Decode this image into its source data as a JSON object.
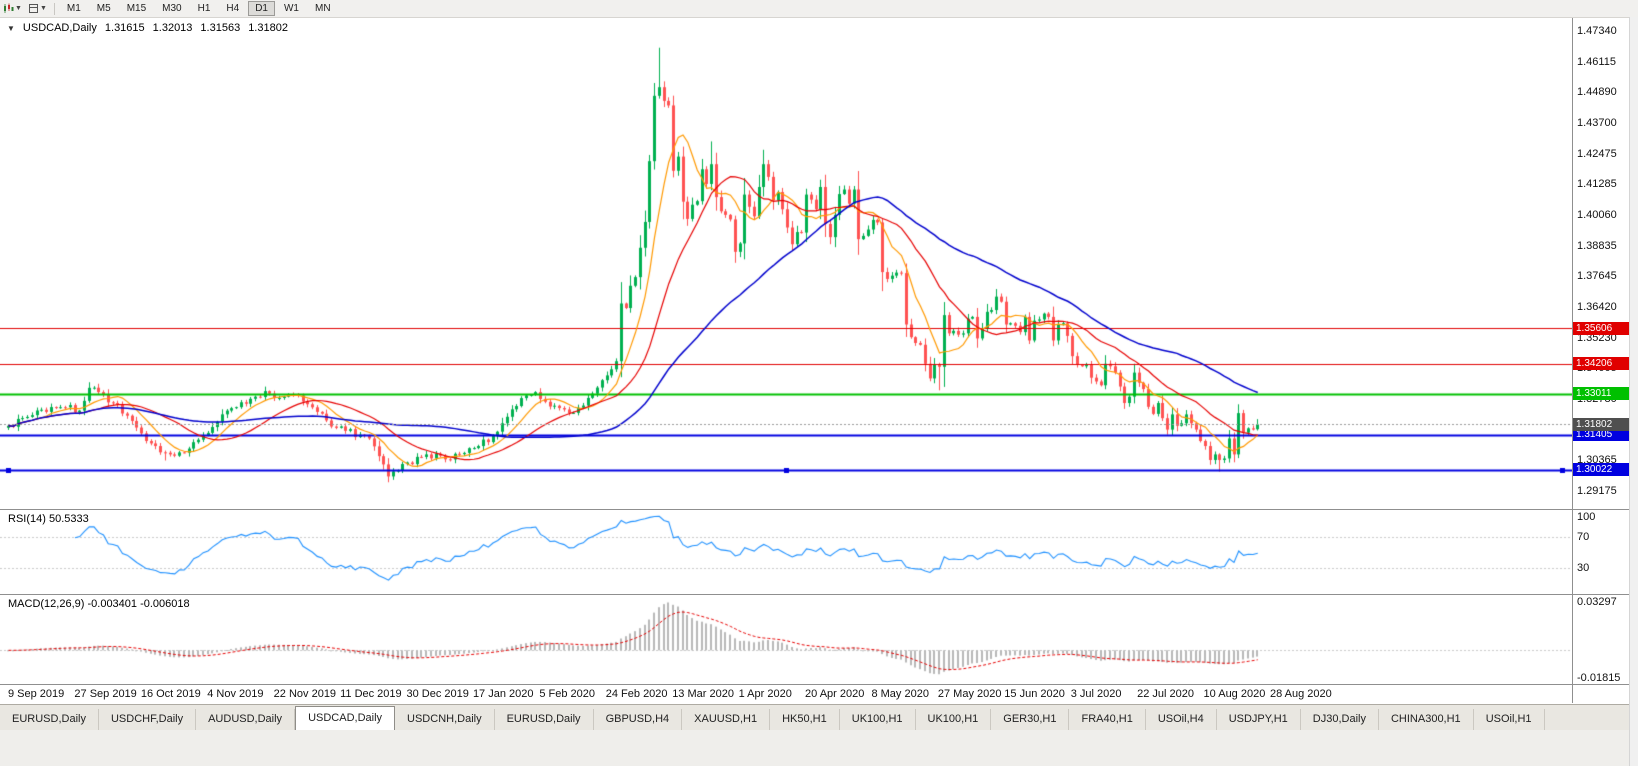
{
  "toolbar": {
    "timeframes": [
      "M1",
      "M5",
      "M15",
      "M30",
      "H1",
      "H4",
      "D1",
      "W1",
      "MN"
    ],
    "active_timeframe": "D1",
    "icons": [
      "chart-menu-icon",
      "chart-type-icon"
    ]
  },
  "chart": {
    "marker": "▼",
    "title": {
      "symbol_period": "USDCAD,Daily",
      "open": "1.31615",
      "high": "1.32013",
      "low": "1.31563",
      "close": "1.31802"
    },
    "price_axis_labels": [
      "1.47340",
      "1.46115",
      "1.44890",
      "1.43700",
      "1.42475",
      "1.41285",
      "1.40060",
      "1.38835",
      "1.37645",
      "1.36420",
      "1.35230",
      "1.34005",
      "1.32780",
      "1.31590",
      "1.30365",
      "1.29175"
    ],
    "date_axis_labels": [
      "9 Sep 2019",
      "27 Sep 2019",
      "16 Oct 2019",
      "4 Nov 2019",
      "22 Nov 2019",
      "11 Dec 2019",
      "30 Dec 2019",
      "17 Jan 2020",
      "5 Feb 2020",
      "24 Feb 2020",
      "13 Mar 2020",
      "1 Apr 2020",
      "20 Apr 2020",
      "8 May 2020",
      "27 May 2020",
      "15 Jun 2020",
      "3 Jul 2020",
      "22 Jul 2020",
      "10 Aug 2020",
      "28 Aug 2020"
    ],
    "levels": [
      {
        "label": "1.35606",
        "value": 1.35606,
        "color": "#e00000",
        "width": 1
      },
      {
        "label": "1.34206",
        "value": 1.34206,
        "color": "#e00000",
        "width": 1
      },
      {
        "label": "1.33011",
        "value": 1.33011,
        "color": "#00c000",
        "width": 2
      },
      {
        "label": "1.31405",
        "value": 1.31405,
        "color": "#0000e0",
        "width": 2
      },
      {
        "label": "1.30022",
        "value": 1.30022,
        "color": "#0000e0",
        "width": 2,
        "handles": true
      }
    ],
    "colors": {
      "candle_up": "#00b050",
      "candle_down": "#ff5252",
      "ma_fast": "#ff9900",
      "ma_mid": "#e60000",
      "ma_slow": "#0000cd",
      "rsi": "#1e90ff",
      "macd_hist": "#b8b8b8",
      "macd_signal": "#e60000",
      "current_tag": "#4f4f4f"
    }
  },
  "indicators": {
    "rsi": {
      "label": "RSI(14)",
      "value": "50.5333",
      "period": 14,
      "axis_labels": [
        "100",
        "70",
        "30"
      ],
      "guide_levels": [
        70,
        30
      ]
    },
    "macd": {
      "label": "MACD(12,26,9)",
      "value": "-0.003401 -0.006018",
      "fast": 12,
      "slow": 26,
      "signal_period": 9,
      "axis_labels": [
        "0.03297",
        "-0.01815"
      ],
      "axis_max": 0.03297,
      "axis_min": -0.01815
    }
  },
  "tabs": {
    "items": [
      "EURUSD,Daily",
      "USDCHF,Daily",
      "AUDUSD,Daily",
      "USDCAD,Daily",
      "USDCNH,Daily",
      "EURUSD,Daily",
      "GBPUSD,H4",
      "XAUUSD,H1",
      "HK50,H1",
      "UK100,H1",
      "UK100,H1",
      "GER30,H1",
      "FRA40,H1",
      "USOil,H4",
      "USDJPY,H1",
      "DJ30,Daily",
      "CHINA300,H1",
      "USOil,H1"
    ],
    "active_index": 3
  },
  "chart_data": {
    "type": "candlestick",
    "symbol": "USDCAD",
    "timeframe": "Daily",
    "candle_count": 264,
    "price_at_top_label": 1.4734,
    "price_at_bottom_label": 1.29175,
    "ma_periods": [
      8,
      20,
      50
    ],
    "close_anchors": [
      [
        0,
        1.3175
      ],
      [
        4,
        1.321
      ],
      [
        8,
        1.323
      ],
      [
        12,
        1.3248
      ],
      [
        15,
        1.3235
      ],
      [
        17,
        1.3325
      ],
      [
        19,
        1.3308
      ],
      [
        22,
        1.3265
      ],
      [
        25,
        1.3215
      ],
      [
        28,
        1.3145
      ],
      [
        31,
        1.3095
      ],
      [
        34,
        1.3062
      ],
      [
        36,
        1.307
      ],
      [
        38,
        1.3085
      ],
      [
        40,
        1.312
      ],
      [
        43,
        1.317
      ],
      [
        46,
        1.3235
      ],
      [
        49,
        1.3268
      ],
      [
        52,
        1.329
      ],
      [
        55,
        1.3302
      ],
      [
        57,
        1.3285
      ],
      [
        59,
        1.3298
      ],
      [
        61,
        1.3295
      ],
      [
        63,
        1.326
      ],
      [
        65,
        1.323
      ],
      [
        68,
        1.3172
      ],
      [
        71,
        1.3155
      ],
      [
        74,
        1.314
      ],
      [
        76,
        1.3125
      ],
      [
        78,
        1.3055
      ],
      [
        80,
        1.2975
      ],
      [
        82,
        1.2998
      ],
      [
        84,
        1.303
      ],
      [
        87,
        1.3052
      ],
      [
        90,
        1.3065
      ],
      [
        93,
        1.3042
      ],
      [
        96,
        1.3068
      ],
      [
        99,
        1.3095
      ],
      [
        102,
        1.3135
      ],
      [
        104,
        1.3185
      ],
      [
        106,
        1.324
      ],
      [
        109,
        1.3295
      ],
      [
        111,
        1.3308
      ],
      [
        113,
        1.327
      ],
      [
        116,
        1.3245
      ],
      [
        119,
        1.3226
      ],
      [
        121,
        1.3255
      ],
      [
        123,
        1.3302
      ],
      [
        125,
        1.3355
      ],
      [
        127,
        1.3398
      ],
      [
        128,
        1.343
      ],
      [
        129,
        1.3658
      ],
      [
        130,
        1.364
      ],
      [
        131,
        1.3728
      ],
      [
        132,
        1.3762
      ],
      [
        133,
        1.3878
      ],
      [
        134,
        1.398
      ],
      [
        135,
        1.422
      ],
      [
        136,
        1.4478
      ],
      [
        137,
        1.4512
      ],
      [
        138,
        1.4458
      ],
      [
        139,
        1.444
      ],
      [
        140,
        1.4182
      ],
      [
        141,
        1.4238
      ],
      [
        142,
        1.406
      ],
      [
        143,
        1.3992
      ],
      [
        144,
        1.4048
      ],
      [
        145,
        1.4062
      ],
      [
        146,
        1.4188
      ],
      [
        147,
        1.413
      ],
      [
        148,
        1.4208
      ],
      [
        149,
        1.4078
      ],
      [
        150,
        1.4022
      ],
      [
        151,
        1.4008
      ],
      [
        152,
        1.399
      ],
      [
        153,
        1.3862
      ],
      [
        154,
        1.3895
      ],
      [
        155,
        1.4088
      ],
      [
        156,
        1.404
      ],
      [
        157,
        1.4002
      ],
      [
        158,
        1.4118
      ],
      [
        159,
        1.4208
      ],
      [
        160,
        1.4158
      ],
      [
        161,
        1.4065
      ],
      [
        162,
        1.4098
      ],
      [
        163,
        1.403
      ],
      [
        164,
        1.3958
      ],
      [
        165,
        1.3892
      ],
      [
        166,
        1.394
      ],
      [
        167,
        1.3938
      ],
      [
        168,
        1.4088
      ],
      [
        169,
        1.4068
      ],
      [
        170,
        1.403
      ],
      [
        171,
        1.4118
      ],
      [
        172,
        1.3972
      ],
      [
        173,
        1.392
      ],
      [
        174,
        1.4008
      ],
      [
        175,
        1.409
      ],
      [
        176,
        1.4108
      ],
      [
        177,
        1.4052
      ],
      [
        178,
        1.4108
      ],
      [
        179,
        1.3912
      ],
      [
        180,
        1.3925
      ],
      [
        181,
        1.395
      ],
      [
        182,
        1.3988
      ],
      [
        183,
        1.3978
      ],
      [
        184,
        1.3782
      ],
      [
        185,
        1.3755
      ],
      [
        186,
        1.3768
      ],
      [
        187,
        1.378
      ],
      [
        188,
        1.3778
      ],
      [
        189,
        1.3575
      ],
      [
        190,
        1.3525
      ],
      [
        191,
        1.3502
      ],
      [
        192,
        1.3495
      ],
      [
        193,
        1.342
      ],
      [
        194,
        1.3362
      ],
      [
        195,
        1.3415
      ],
      [
        196,
        1.3408
      ],
      [
        197,
        1.3612
      ],
      [
        198,
        1.354
      ],
      [
        199,
        1.355
      ],
      [
        200,
        1.3535
      ],
      [
        201,
        1.354
      ],
      [
        202,
        1.3598
      ],
      [
        203,
        1.3605
      ],
      [
        204,
        1.352
      ],
      [
        205,
        1.356
      ],
      [
        206,
        1.3625
      ],
      [
        207,
        1.3632
      ],
      [
        208,
        1.3685
      ],
      [
        209,
        1.3665
      ],
      [
        210,
        1.3575
      ],
      [
        211,
        1.358
      ],
      [
        212,
        1.357
      ],
      [
        213,
        1.3545
      ],
      [
        214,
        1.3605
      ],
      [
        215,
        1.3512
      ],
      [
        216,
        1.359
      ],
      [
        217,
        1.3595
      ],
      [
        218,
        1.3618
      ],
      [
        219,
        1.3605
      ],
      [
        220,
        1.3512
      ],
      [
        221,
        1.3575
      ],
      [
        222,
        1.358
      ],
      [
        223,
        1.353
      ],
      [
        224,
        1.345
      ],
      [
        225,
        1.3415
      ],
      [
        226,
        1.341
      ],
      [
        227,
        1.3416
      ],
      [
        228,
        1.3365
      ],
      [
        229,
        1.335
      ],
      [
        230,
        1.3335
      ],
      [
        231,
        1.342
      ],
      [
        232,
        1.341
      ],
      [
        233,
        1.3385
      ],
      [
        234,
        1.333
      ],
      [
        235,
        1.3265
      ],
      [
        236,
        1.329
      ],
      [
        237,
        1.3385
      ],
      [
        238,
        1.3345
      ],
      [
        239,
        1.332
      ],
      [
        240,
        1.325
      ],
      [
        241,
        1.3222
      ],
      [
        242,
        1.3265
      ],
      [
        243,
        1.3205
      ],
      [
        244,
        1.316
      ],
      [
        245,
        1.322
      ],
      [
        246,
        1.3175
      ],
      [
        247,
        1.3185
      ],
      [
        248,
        1.322
      ],
      [
        249,
        1.3185
      ],
      [
        250,
        1.316
      ],
      [
        251,
        1.3115
      ],
      [
        252,
        1.3095
      ],
      [
        253,
        1.304
      ],
      [
        254,
        1.3062
      ],
      [
        255,
        1.304
      ],
      [
        256,
        1.3046
      ],
      [
        257,
        1.3125
      ],
      [
        258,
        1.3062
      ],
      [
        259,
        1.3225
      ],
      [
        260,
        1.3148
      ],
      [
        261,
        1.3165
      ],
      [
        262,
        1.316
      ],
      [
        263,
        1.31802
      ]
    ],
    "extremes": {
      "17": {
        "high": 1.3347
      },
      "33": {
        "low": 1.3038
      },
      "80": {
        "low": 1.2952
      },
      "137": {
        "high": 1.4668
      },
      "148": {
        "high": 1.4298
      },
      "159": {
        "high": 1.4265
      },
      "193": {
        "low": 1.339
      },
      "196": {
        "low": 1.3315
      },
      "197": {
        "high": 1.363
      },
      "208": {
        "high": 1.3715
      },
      "255": {
        "low": 1.2994
      },
      "259": {
        "high": 1.3258
      }
    }
  }
}
